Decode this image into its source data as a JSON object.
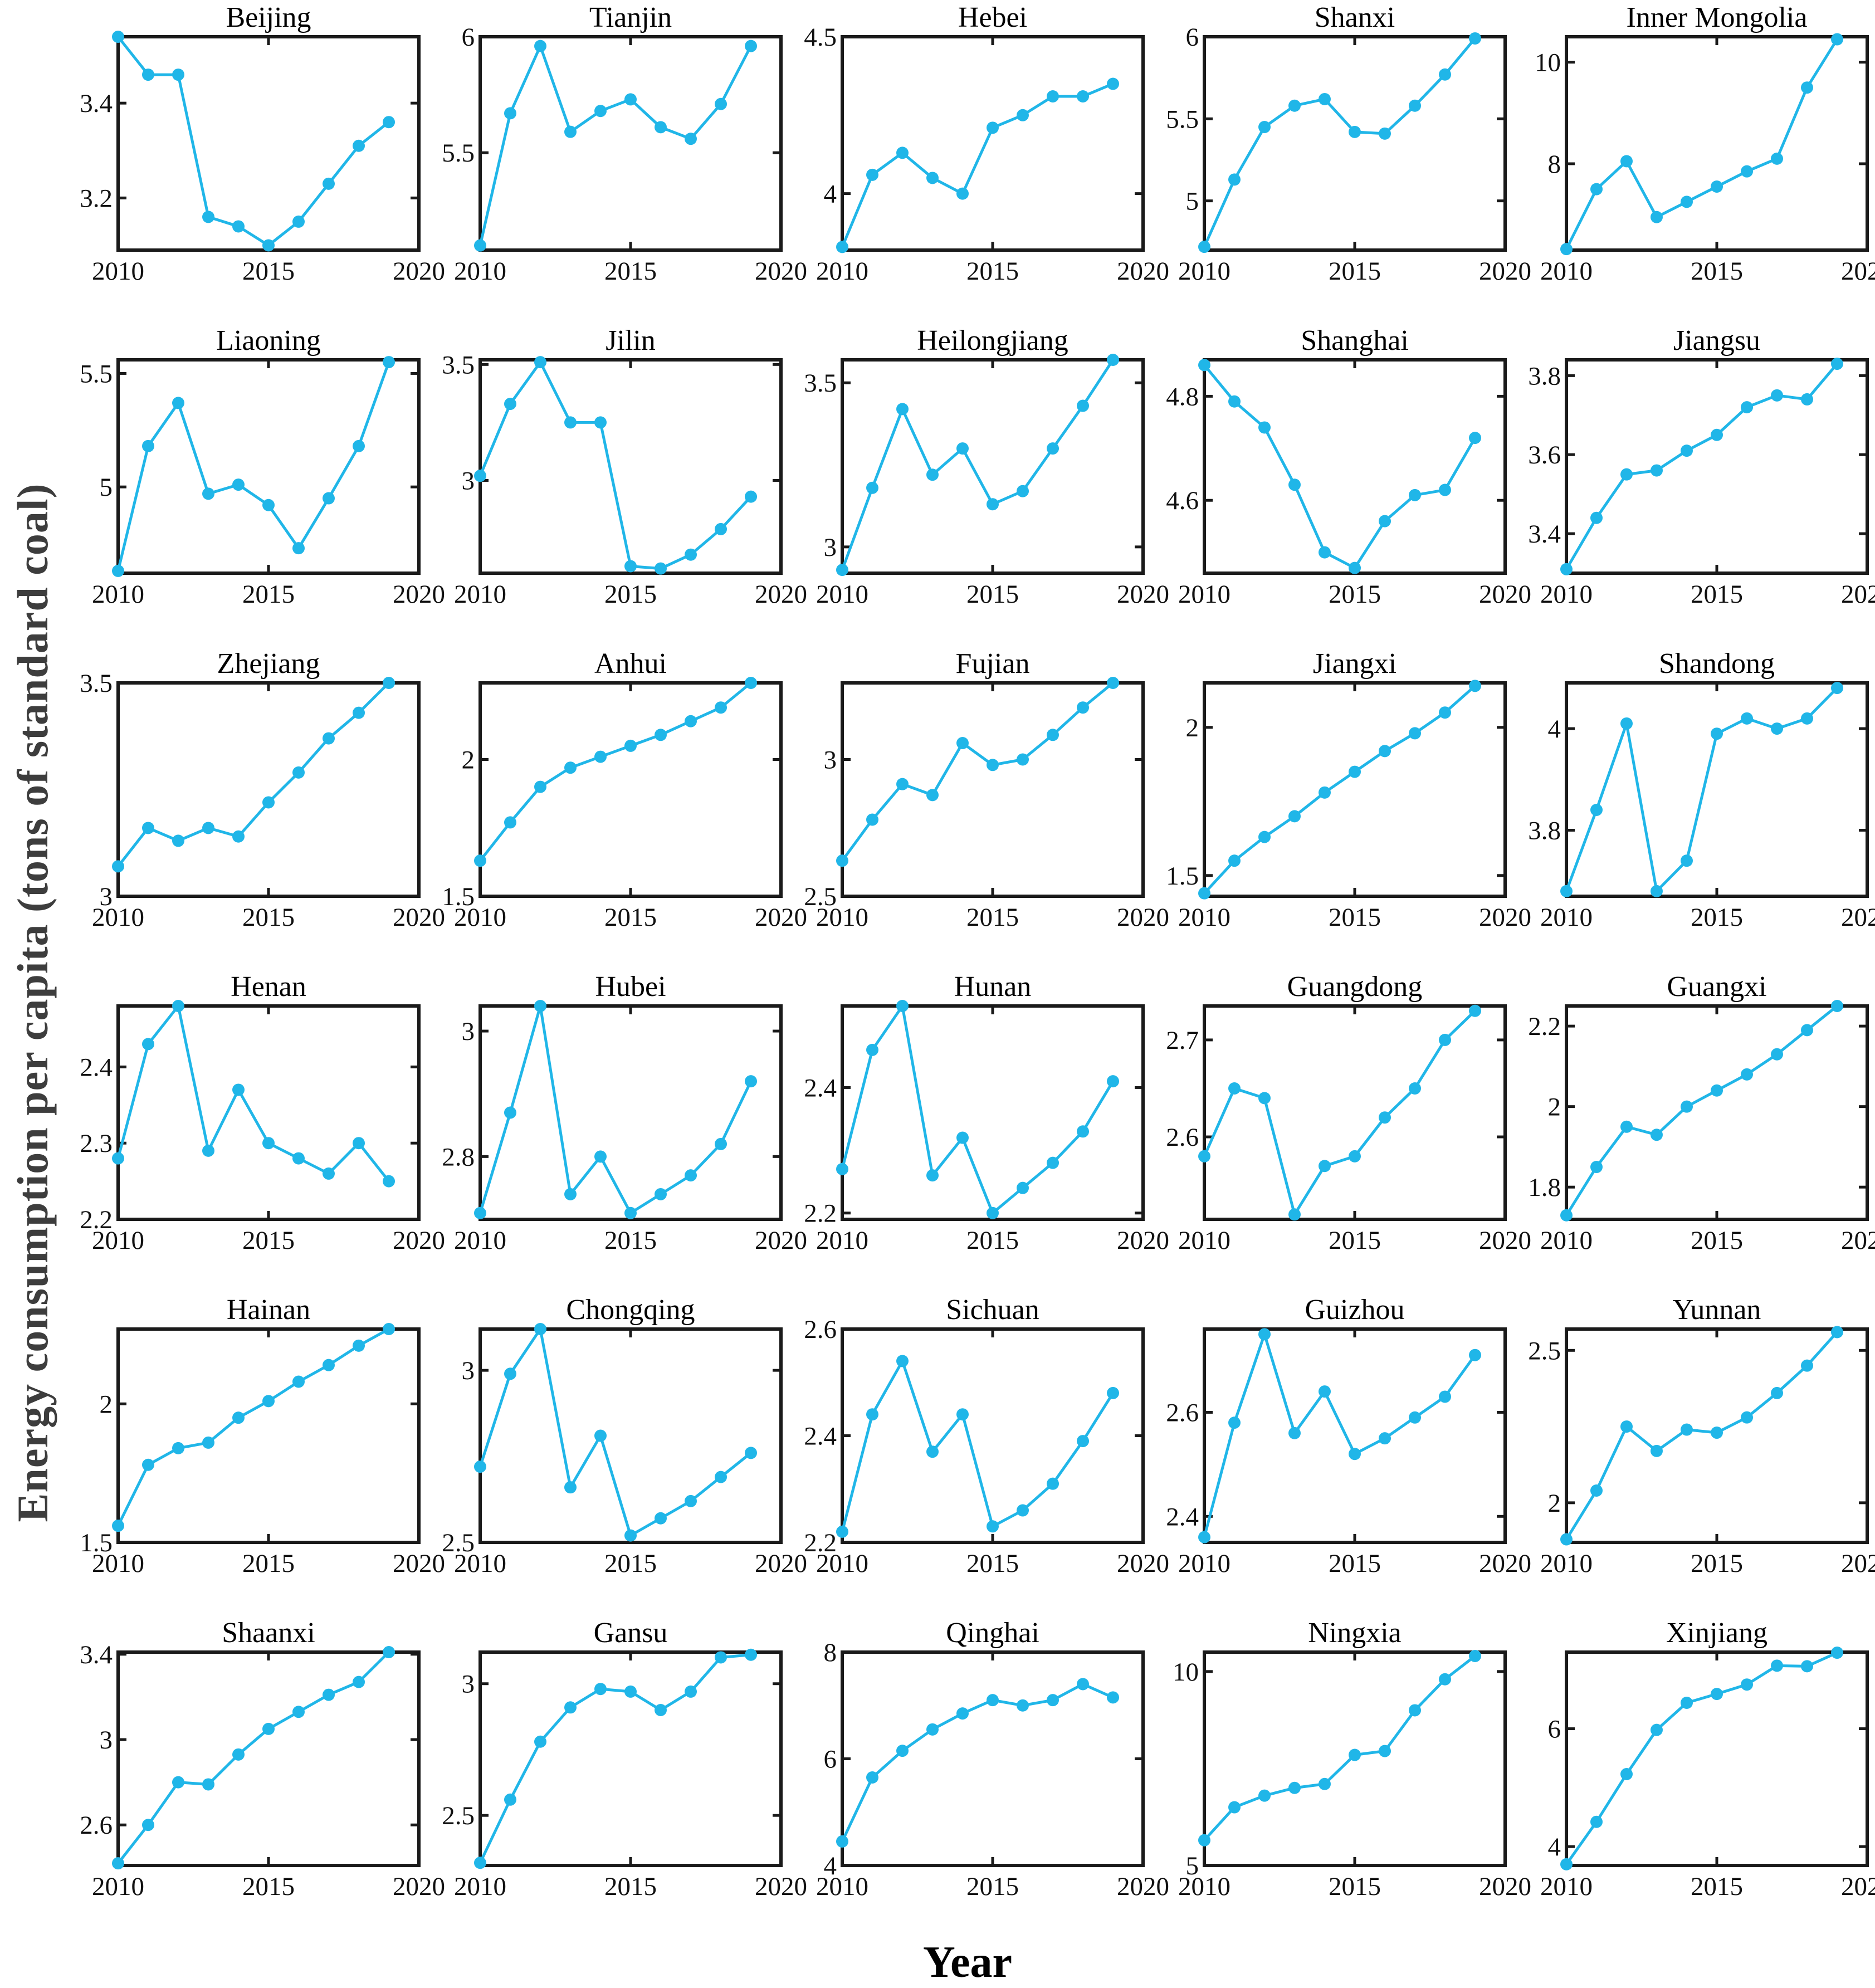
{
  "figure": {
    "ylabel": "Energy consumption per capita (tons of standard coal)",
    "xlabel": "Year",
    "line_color": "#20b6e8",
    "axis_color": "#1a1a1a",
    "ylabel_color": "#3d3d3d",
    "grid": "off",
    "legend": "none",
    "years": [
      2010,
      2011,
      2012,
      2013,
      2014,
      2015,
      2016,
      2017,
      2018,
      2019
    ],
    "x_range": [
      2010,
      2020
    ],
    "x_ticks": [
      2010,
      2015,
      2020
    ],
    "x_tick_labels": [
      "2010",
      "2015",
      "2020"
    ]
  },
  "chart_data": [
    {
      "type": "line",
      "title": "Beijing",
      "ylim": [
        3.09,
        3.54
      ],
      "yticks": [
        3.2,
        3.4
      ],
      "values": [
        3.54,
        3.46,
        3.46,
        3.16,
        3.14,
        3.1,
        3.15,
        3.23,
        3.31,
        3.36
      ]
    },
    {
      "type": "line",
      "title": "Tianjin",
      "ylim": [
        5.08,
        6.0
      ],
      "yticks": [
        5.5,
        6
      ],
      "values": [
        5.1,
        5.67,
        5.96,
        5.59,
        5.68,
        5.73,
        5.61,
        5.56,
        5.71,
        5.96
      ]
    },
    {
      "type": "line",
      "title": "Hebei",
      "ylim": [
        3.82,
        4.5
      ],
      "yticks": [
        4,
        4.5
      ],
      "values": [
        3.83,
        4.06,
        4.13,
        4.05,
        4.0,
        4.21,
        4.25,
        4.31,
        4.31,
        4.35
      ]
    },
    {
      "type": "line",
      "title": "Shanxi",
      "ylim": [
        4.7,
        6.0
      ],
      "yticks": [
        5,
        5.5,
        6
      ],
      "values": [
        4.72,
        5.13,
        5.45,
        5.58,
        5.62,
        5.42,
        5.41,
        5.58,
        5.77,
        5.99
      ]
    },
    {
      "type": "line",
      "title": "Inner Mongolia",
      "ylim": [
        6.3,
        10.5
      ],
      "yticks": [
        8,
        10
      ],
      "values": [
        6.32,
        7.5,
        8.05,
        6.95,
        7.25,
        7.55,
        7.85,
        8.1,
        9.5,
        10.45
      ]
    },
    {
      "type": "line",
      "title": "Liaoning",
      "ylim": [
        4.62,
        5.56
      ],
      "yticks": [
        5,
        5.5
      ],
      "values": [
        4.63,
        5.18,
        5.37,
        4.97,
        5.01,
        4.92,
        4.73,
        4.95,
        5.18,
        5.55
      ]
    },
    {
      "type": "line",
      "title": "Jilin",
      "ylim": [
        2.6,
        3.52
      ],
      "yticks": [
        3,
        3.5
      ],
      "values": [
        3.02,
        3.33,
        3.51,
        3.25,
        3.25,
        2.63,
        2.62,
        2.68,
        2.79,
        2.93
      ]
    },
    {
      "type": "line",
      "title": "Heilongjiang",
      "ylim": [
        2.92,
        3.57
      ],
      "yticks": [
        3,
        3.5
      ],
      "values": [
        2.93,
        3.18,
        3.42,
        3.22,
        3.3,
        3.13,
        3.17,
        3.3,
        3.43,
        3.57
      ]
    },
    {
      "type": "line",
      "title": "Shanghai",
      "ylim": [
        4.46,
        4.87
      ],
      "yticks": [
        4.6,
        4.8
      ],
      "values": [
        4.86,
        4.79,
        4.74,
        4.63,
        4.5,
        4.47,
        4.56,
        4.61,
        4.62,
        4.72
      ]
    },
    {
      "type": "line",
      "title": "Jiangsu",
      "ylim": [
        3.3,
        3.84
      ],
      "yticks": [
        3.4,
        3.6,
        3.8
      ],
      "values": [
        3.31,
        3.44,
        3.55,
        3.56,
        3.61,
        3.65,
        3.72,
        3.75,
        3.74,
        3.83
      ]
    },
    {
      "type": "line",
      "title": "Zhejiang",
      "ylim": [
        3.0,
        3.5
      ],
      "yticks": [
        3,
        3.5
      ],
      "values": [
        3.07,
        3.16,
        3.13,
        3.16,
        3.14,
        3.22,
        3.29,
        3.37,
        3.43,
        3.5
      ]
    },
    {
      "type": "line",
      "title": "Anhui",
      "ylim": [
        1.5,
        2.28
      ],
      "yticks": [
        1.5,
        2
      ],
      "values": [
        1.63,
        1.77,
        1.9,
        1.97,
        2.01,
        2.05,
        2.09,
        2.14,
        2.19,
        2.28
      ]
    },
    {
      "type": "line",
      "title": "Fujian",
      "ylim": [
        2.5,
        3.28
      ],
      "yticks": [
        2.5,
        3
      ],
      "values": [
        2.63,
        2.78,
        2.91,
        2.87,
        3.06,
        2.98,
        3.0,
        3.09,
        3.19,
        3.28
      ]
    },
    {
      "type": "line",
      "title": "Jiangxi",
      "ylim": [
        1.43,
        2.15
      ],
      "yticks": [
        1.5,
        2
      ],
      "values": [
        1.44,
        1.55,
        1.63,
        1.7,
        1.78,
        1.85,
        1.92,
        1.98,
        2.05,
        2.14
      ]
    },
    {
      "type": "line",
      "title": "Shandong",
      "ylim": [
        3.67,
        4.09
      ],
      "yticks": [
        3.8,
        4
      ],
      "values": [
        3.68,
        3.84,
        4.01,
        3.68,
        3.74,
        3.99,
        4.02,
        4.0,
        4.02,
        4.08
      ]
    },
    {
      "type": "line",
      "title": "Henan",
      "ylim": [
        2.2,
        2.48
      ],
      "yticks": [
        2.2,
        2.3,
        2.4
      ],
      "values": [
        2.28,
        2.43,
        2.48,
        2.29,
        2.37,
        2.3,
        2.28,
        2.26,
        2.3,
        2.25
      ]
    },
    {
      "type": "line",
      "title": "Hubei",
      "ylim": [
        2.7,
        3.04
      ],
      "yticks": [
        2.8,
        3
      ],
      "values": [
        2.71,
        2.87,
        3.04,
        2.74,
        2.8,
        2.71,
        2.74,
        2.77,
        2.82,
        2.92
      ]
    },
    {
      "type": "line",
      "title": "Hunan",
      "ylim": [
        2.19,
        2.53
      ],
      "yticks": [
        2.2,
        2.4
      ],
      "values": [
        2.27,
        2.46,
        2.53,
        2.26,
        2.32,
        2.2,
        2.24,
        2.28,
        2.33,
        2.41
      ]
    },
    {
      "type": "line",
      "title": "Guangdong",
      "ylim": [
        2.515,
        2.735
      ],
      "yticks": [
        2.6,
        2.7
      ],
      "values": [
        2.58,
        2.65,
        2.64,
        2.52,
        2.57,
        2.58,
        2.62,
        2.65,
        2.7,
        2.73
      ]
    },
    {
      "type": "line",
      "title": "Guangxi",
      "ylim": [
        1.72,
        2.25
      ],
      "yticks": [
        1.8,
        2,
        2.2
      ],
      "values": [
        1.73,
        1.85,
        1.95,
        1.93,
        2.0,
        2.04,
        2.08,
        2.13,
        2.19,
        2.25
      ]
    },
    {
      "type": "line",
      "title": "Hainan",
      "ylim": [
        1.5,
        2.27
      ],
      "yticks": [
        1.5,
        2
      ],
      "values": [
        1.56,
        1.78,
        1.84,
        1.86,
        1.95,
        2.01,
        2.08,
        2.14,
        2.21,
        2.27
      ]
    },
    {
      "type": "line",
      "title": "Chongqing",
      "ylim": [
        2.5,
        3.12
      ],
      "yticks": [
        2.5,
        3
      ],
      "values": [
        2.72,
        2.99,
        3.12,
        2.66,
        2.81,
        2.52,
        2.57,
        2.62,
        2.69,
        2.76
      ]
    },
    {
      "type": "line",
      "title": "Sichuan",
      "ylim": [
        2.2,
        2.6
      ],
      "yticks": [
        2.2,
        2.4,
        2.6
      ],
      "values": [
        2.22,
        2.44,
        2.54,
        2.37,
        2.44,
        2.23,
        2.26,
        2.31,
        2.39,
        2.48
      ]
    },
    {
      "type": "line",
      "title": "Guizhou",
      "ylim": [
        2.35,
        2.76
      ],
      "yticks": [
        2.4,
        2.6
      ],
      "values": [
        2.36,
        2.58,
        2.75,
        2.56,
        2.64,
        2.52,
        2.55,
        2.59,
        2.63,
        2.71
      ]
    },
    {
      "type": "line",
      "title": "Yunnan",
      "ylim": [
        1.87,
        2.57
      ],
      "yticks": [
        2,
        2.5
      ],
      "values": [
        1.88,
        2.04,
        2.25,
        2.17,
        2.24,
        2.23,
        2.28,
        2.36,
        2.45,
        2.56
      ]
    },
    {
      "type": "line",
      "title": "Shaanxi",
      "ylim": [
        2.41,
        3.41
      ],
      "yticks": [
        2.6,
        3,
        3.4
      ],
      "values": [
        2.42,
        2.6,
        2.8,
        2.79,
        2.93,
        3.05,
        3.13,
        3.21,
        3.27,
        3.41
      ]
    },
    {
      "type": "line",
      "title": "Gansu",
      "ylim": [
        2.31,
        3.12
      ],
      "yticks": [
        2.5,
        3
      ],
      "values": [
        2.32,
        2.56,
        2.78,
        2.91,
        2.98,
        2.97,
        2.9,
        2.97,
        3.1,
        3.11
      ]
    },
    {
      "type": "line",
      "title": "Qinghai",
      "ylim": [
        4.0,
        8.0
      ],
      "yticks": [
        4,
        6,
        8
      ],
      "values": [
        4.45,
        5.65,
        6.15,
        6.55,
        6.85,
        7.1,
        7.0,
        7.1,
        7.4,
        7.15
      ]
    },
    {
      "type": "line",
      "title": "Ningxia",
      "ylim": [
        5.0,
        10.5
      ],
      "yticks": [
        5,
        10
      ],
      "values": [
        5.65,
        6.5,
        6.8,
        7.0,
        7.1,
        7.85,
        7.95,
        9.0,
        9.8,
        10.4
      ]
    },
    {
      "type": "line",
      "title": "Xinjiang",
      "ylim": [
        3.68,
        7.3
      ],
      "yticks": [
        4,
        6
      ],
      "values": [
        3.7,
        4.42,
        5.23,
        5.98,
        6.44,
        6.59,
        6.75,
        7.07,
        7.06,
        7.29
      ]
    }
  ]
}
